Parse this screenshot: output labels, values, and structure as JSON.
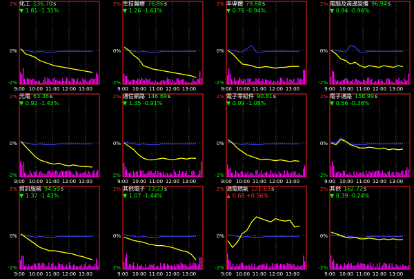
{
  "time_ticks": [
    "9:00",
    "10:00",
    "11:00",
    "12:00",
    "13:00"
  ],
  "y_ticks": [
    "2%",
    "0%",
    "-2%"
  ],
  "unit": "s",
  "colors": {
    "price_line": "#ffff00",
    "ref_line": "#4040ff",
    "volume": "#ff00ff",
    "frame": "#ff2020",
    "grid": "#5a5a5a",
    "down": "#00ff00",
    "up": "#ff3030"
  },
  "chart_data": [
    {
      "type": "line",
      "name": "化工",
      "price": "136.70",
      "change": "1.81",
      "pct": "-1.31%",
      "dir": "down",
      "icon": "down-triangle-icon",
      "ylim": [
        -2,
        2
      ],
      "series": [
        {
          "values": [
            0.1,
            -0.2,
            -0.3,
            -0.4,
            -0.6,
            -0.7,
            -0.8,
            -0.9,
            -0.95,
            -1.0,
            -1.05,
            -1.1,
            -1.15,
            -1.2,
            -1.25,
            -1.3
          ]
        }
      ],
      "ref": [
        0.05,
        0.0,
        -0.05,
        -0.1,
        -0.05,
        -0.1,
        -0.1,
        -0.1,
        -0.05,
        -0.05,
        -0.05,
        -0.05,
        -0.05,
        -0.05,
        -0.05,
        -0.05
      ]
    },
    {
      "type": "line",
      "name": "生技醫療",
      "price": "76.86",
      "change": "1.26",
      "pct": "-1.61%",
      "dir": "down",
      "icon": "down-triangle-icon",
      "ylim": [
        -2,
        2
      ],
      "series": [
        {
          "values": [
            0.2,
            0.0,
            -0.3,
            -0.5,
            -0.9,
            -1.0,
            -1.1,
            -1.15,
            -1.2,
            -1.25,
            -1.3,
            -1.35,
            -1.4,
            -1.45,
            -1.5,
            -1.6
          ]
        }
      ],
      "ref": [
        0.05,
        0.0,
        -0.05,
        -0.1,
        -0.05,
        -0.1,
        -0.1,
        -0.1,
        -0.05,
        -0.05,
        -0.05,
        -0.05,
        -0.05,
        -0.05,
        -0.05,
        -0.05
      ]
    },
    {
      "type": "line",
      "name": "半導體",
      "price": "79.88",
      "change": "0.76",
      "pct": "-0.94%",
      "dir": "down",
      "icon": "down-triangle-icon",
      "ylim": [
        -2,
        2
      ],
      "series": [
        {
          "values": [
            0.0,
            -0.2,
            -0.5,
            -0.8,
            -0.85,
            -0.9,
            -1.0,
            -1.0,
            -0.95,
            -1.0,
            -1.05,
            -1.0,
            -1.0,
            -0.95,
            -0.95,
            -0.94
          ]
        }
      ],
      "ref": [
        0.05,
        0.0,
        -0.05,
        -0.1,
        0.1,
        0.3,
        -0.1,
        -0.1,
        -0.05,
        -0.05,
        -0.05,
        -0.05,
        -0.05,
        -0.05,
        -0.05,
        -0.05
      ]
    },
    {
      "type": "line",
      "name": "電腦及週邊設備",
      "price": "96.94",
      "change": "0.94",
      "pct": "-0.96%",
      "dir": "down",
      "icon": "down-triangle-icon",
      "ylim": [
        -2,
        2
      ],
      "series": [
        {
          "values": [
            0.0,
            -0.2,
            -0.5,
            -0.6,
            -0.8,
            -0.7,
            -0.9,
            -1.0,
            -0.9,
            -0.95,
            -1.0,
            -0.9,
            -0.95,
            -1.0,
            -0.9,
            -0.96
          ]
        }
      ],
      "ref": [
        0.05,
        0.0,
        -0.05,
        -0.1,
        0.3,
        0.2,
        -0.1,
        -0.1,
        -0.05,
        -0.05,
        -0.05,
        -0.05,
        -0.05,
        -0.05,
        -0.05,
        -0.05
      ]
    },
    {
      "type": "line",
      "name": "光電",
      "price": "63.36",
      "change": "0.92",
      "pct": "-1.43%",
      "dir": "down",
      "icon": "down-triangle-icon",
      "ylim": [
        -2,
        2
      ],
      "series": [
        {
          "values": [
            0.1,
            -0.2,
            -0.5,
            -0.8,
            -1.0,
            -1.1,
            -1.2,
            -1.25,
            -1.2,
            -1.3,
            -1.35,
            -1.3,
            -1.35,
            -1.4,
            -1.4,
            -1.43
          ]
        }
      ],
      "ref": [
        0.05,
        0.0,
        -0.05,
        -0.1,
        -0.05,
        -0.1,
        -0.1,
        -0.1,
        -0.05,
        -0.05,
        -0.05,
        -0.05,
        -0.05,
        -0.05,
        -0.05,
        -0.05
      ]
    },
    {
      "type": "line",
      "name": "通信網路",
      "price": "146.69",
      "change": "1.35",
      "pct": "-0.91%",
      "dir": "down",
      "icon": "down-triangle-icon",
      "ylim": [
        -2,
        2
      ],
      "series": [
        {
          "values": [
            0.0,
            -0.2,
            -0.4,
            -0.7,
            -0.9,
            -1.0,
            -1.0,
            -0.95,
            -0.9,
            -0.95,
            -1.0,
            -0.95,
            -0.9,
            -0.95,
            -0.9,
            -0.91
          ]
        }
      ],
      "ref": [
        0.05,
        0.0,
        -0.05,
        -0.1,
        -0.05,
        -0.1,
        -0.1,
        -0.1,
        -0.05,
        -0.05,
        -0.05,
        -0.05,
        -0.05,
        -0.05,
        -0.05,
        -0.05
      ]
    },
    {
      "type": "line",
      "name": "電子零組件",
      "price": "90.81",
      "change": "0.99",
      "pct": "-1.08%",
      "dir": "down",
      "icon": "down-triangle-icon",
      "ylim": [
        -2,
        2
      ],
      "series": [
        {
          "values": [
            0.2,
            0.0,
            -0.3,
            -0.5,
            -0.7,
            -0.8,
            -0.9,
            -1.0,
            -0.95,
            -1.0,
            -1.05,
            -1.0,
            -1.05,
            -1.1,
            -1.05,
            -1.08
          ]
        }
      ],
      "ref": [
        0.05,
        0.0,
        -0.05,
        -0.1,
        -0.05,
        -0.1,
        -0.1,
        -0.1,
        -0.05,
        -0.05,
        -0.05,
        -0.05,
        -0.05,
        -0.05,
        -0.05,
        -0.05
      ]
    },
    {
      "type": "line",
      "name": "電子通路",
      "price": "158.99",
      "change": "0.56",
      "pct": "-0.36%",
      "dir": "down",
      "icon": "down-triangle-icon",
      "ylim": [
        -2,
        2
      ],
      "series": [
        {
          "values": [
            0.0,
            -0.1,
            0.2,
            0.1,
            -0.1,
            -0.2,
            -0.3,
            -0.3,
            -0.25,
            -0.3,
            -0.35,
            -0.3,
            -0.4,
            -0.35,
            -0.4,
            -0.36
          ]
        }
      ],
      "ref": [
        0.05,
        0.0,
        0.3,
        0.1,
        -0.05,
        -0.1,
        -0.1,
        -0.1,
        -0.05,
        -0.05,
        -0.05,
        -0.05,
        -0.05,
        -0.05,
        -0.05,
        -0.05
      ]
    },
    {
      "type": "line",
      "name": "資訊服務",
      "price": "94.59",
      "change": "1.37",
      "pct": "-1.43%",
      "dir": "down",
      "icon": "down-triangle-icon",
      "ylim": [
        -2,
        2
      ],
      "series": [
        {
          "values": [
            0.1,
            -0.1,
            -0.3,
            -0.5,
            -0.7,
            -0.8,
            -0.9,
            -0.9,
            -0.95,
            -1.0,
            -1.05,
            -1.1,
            -1.2,
            -1.25,
            -1.35,
            -1.43
          ]
        }
      ],
      "ref": [
        0.05,
        0.0,
        -0.05,
        -0.1,
        -0.05,
        -0.1,
        -0.1,
        -0.1,
        -0.05,
        -0.05,
        -0.05,
        -0.05,
        -0.05,
        -0.05,
        -0.05,
        -0.05
      ]
    },
    {
      "type": "line",
      "name": "其他電子",
      "price": "73.23",
      "change": "1.07",
      "pct": "-1.44%",
      "dir": "down",
      "icon": "down-triangle-icon",
      "ylim": [
        -2,
        2
      ],
      "series": [
        {
          "values": [
            -0.1,
            -0.2,
            -0.3,
            -0.35,
            -0.4,
            -0.5,
            -0.55,
            -0.6,
            -0.6,
            -0.65,
            -0.7,
            -0.8,
            -0.9,
            -0.95,
            -1.1,
            -1.44
          ]
        }
      ],
      "ref": [
        0.05,
        0.0,
        -0.05,
        -0.1,
        -0.05,
        -0.1,
        -0.1,
        -0.1,
        -0.05,
        -0.05,
        -0.05,
        -0.05,
        -0.05,
        -0.05,
        -0.05,
        -0.05
      ]
    },
    {
      "type": "line",
      "name": "油電燃氣",
      "price": "121.63",
      "change": "0.68",
      "pct": "+0.56%",
      "dir": "up",
      "icon": "up-triangle-icon",
      "ylim": [
        -2,
        2
      ],
      "series": [
        {
          "values": [
            -0.3,
            -0.7,
            -0.4,
            0.1,
            0.3,
            0.8,
            1.1,
            1.0,
            0.9,
            0.8,
            1.0,
            0.9,
            0.85,
            0.9,
            0.5,
            0.56
          ]
        }
      ],
      "ref": [
        0.05,
        0.0,
        -0.05,
        -0.1,
        -0.05,
        -0.1,
        -0.1,
        -0.1,
        -0.05,
        -0.05,
        -0.05,
        -0.05,
        -0.05,
        -0.05,
        -0.05,
        -0.05
      ]
    },
    {
      "type": "line",
      "name": "其他",
      "price": "162.72",
      "change": "0.39",
      "pct": "-0.24%",
      "dir": "down",
      "icon": "down-triangle-icon",
      "ylim": [
        -2,
        2
      ],
      "series": [
        {
          "values": [
            0.2,
            0.1,
            0.0,
            -0.1,
            -0.15,
            -0.1,
            -0.2,
            -0.2,
            -0.15,
            -0.2,
            -0.25,
            -0.2,
            -0.25,
            -0.2,
            -0.25,
            -0.24
          ]
        }
      ],
      "ref": [
        0.05,
        0.0,
        -0.05,
        -0.1,
        -0.05,
        -0.1,
        -0.1,
        -0.1,
        -0.05,
        -0.05,
        -0.05,
        -0.05,
        -0.05,
        -0.05,
        -0.05,
        -0.05
      ]
    }
  ]
}
